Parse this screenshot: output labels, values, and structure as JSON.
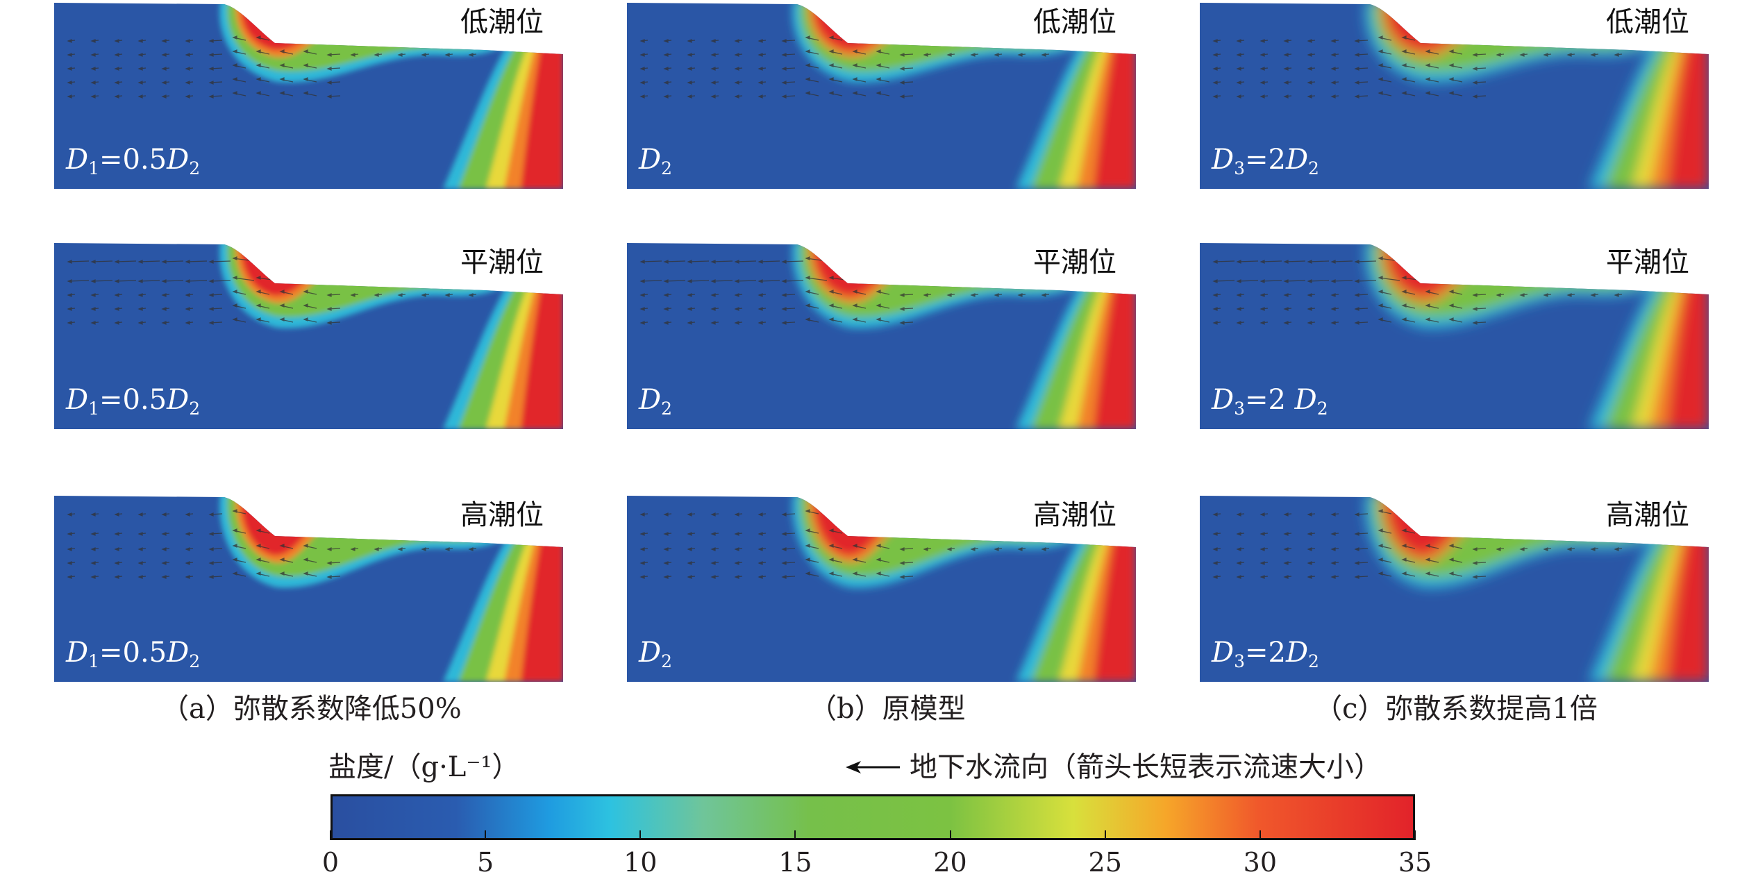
{
  "colorbar": {
    "title": "盐度/（g·L⁻¹）",
    "min": 0,
    "max": 35,
    "tick_labels": [
      "0",
      "5",
      "10",
      "15",
      "20",
      "25",
      "30",
      "35"
    ],
    "stops": [
      {
        "value": 0,
        "color": "#2a4fa0"
      },
      {
        "value": 4,
        "color": "#2a5cb0"
      },
      {
        "value": 7,
        "color": "#1f9be0"
      },
      {
        "value": 9,
        "color": "#2dc2e0"
      },
      {
        "value": 12,
        "color": "#6fc59a"
      },
      {
        "value": 15.5,
        "color": "#76c04a"
      },
      {
        "value": 20,
        "color": "#7cc242"
      },
      {
        "value": 24,
        "color": "#d8e03c"
      },
      {
        "value": 27,
        "color": "#f6a629"
      },
      {
        "value": 30,
        "color": "#f0582b"
      },
      {
        "value": 35,
        "color": "#e2232a"
      }
    ]
  },
  "flow_legend": {
    "arrow_icon": "left-arrow",
    "text": "地下水流向（箭头长短表示流速大小）"
  },
  "columns": [
    {
      "caption": "（a）弥散系数降低50%",
      "d_label": {
        "sym": "D",
        "sub": "1",
        "rhs": "=0.5",
        "sym2": "D",
        "sub2": "2"
      },
      "d_label_mid": {
        "sym": "D",
        "sub": "1",
        "rhs": "=0.5",
        "sym2": "D",
        "sub2": "2"
      }
    },
    {
      "caption": "（b）原模型",
      "d_label": {
        "sym": "D",
        "sub": "2",
        "rhs": "",
        "sym2": "",
        "sub2": ""
      },
      "d_label_mid": {
        "sym": "D",
        "sub": "2",
        "rhs": "",
        "sym2": "",
        "sub2": ""
      }
    },
    {
      "caption": "（c）弥散系数提高1倍",
      "d_label": {
        "sym": "D",
        "sub": "3",
        "rhs": "=2",
        "sym2": "D",
        "sub2": "2"
      },
      "d_label_mid": {
        "sym": "D",
        "sub": "3",
        "rhs": "=2 ",
        "sym2": "D",
        "sub2": "2"
      }
    }
  ],
  "rows": [
    {
      "tide": "低潮位"
    },
    {
      "tide": "平潮位"
    },
    {
      "tide": "高潮位"
    }
  ],
  "colors": {
    "fresh": "#2a56a6",
    "cyan": "#2fb8d8",
    "green": "#79c145",
    "yellow": "#e8d83a",
    "orange": "#f2822a",
    "saline": "#e1262b",
    "arrow": "#333333"
  }
}
